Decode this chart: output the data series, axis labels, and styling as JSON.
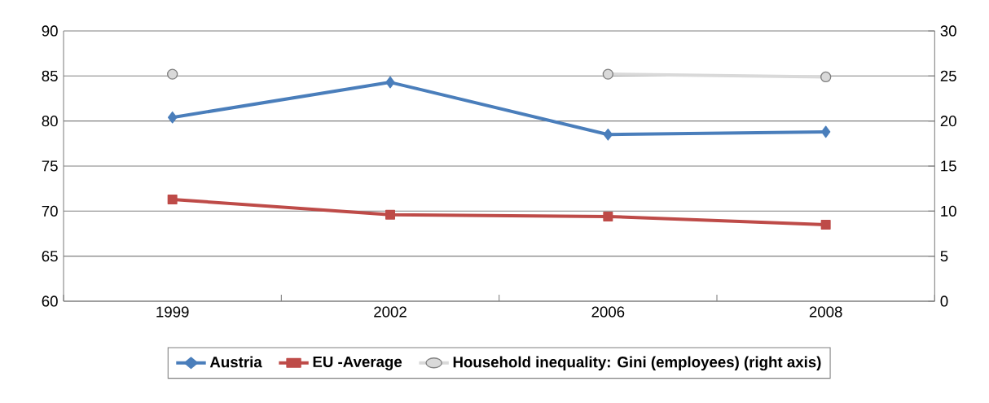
{
  "chart_data": {
    "type": "line",
    "categories": [
      "1999",
      "2002",
      "2006",
      "2008"
    ],
    "ylim": [
      60,
      90
    ],
    "yticks": [
      60,
      65,
      70,
      75,
      80,
      85,
      90
    ],
    "y2lim": [
      0,
      30
    ],
    "y2ticks": [
      0,
      5,
      10,
      15,
      20,
      25,
      30
    ],
    "grid": "y",
    "legend": "bottom",
    "series": [
      {
        "name": "Austria",
        "color": "#4a7ebb",
        "marker": "diamond",
        "values": [
          80.4,
          84.3,
          78.5,
          78.8
        ]
      },
      {
        "name": "EU -Average",
        "color": "#be4b48",
        "marker": "square",
        "values": [
          71.3,
          69.6,
          69.4,
          68.5
        ]
      },
      {
        "name": "Household inequality: Gini (employees) (right axis)",
        "color": "#d9d9d9",
        "marker": "circle",
        "axis": "y2",
        "values": [
          25.2,
          null,
          25.2,
          24.9
        ]
      }
    ]
  }
}
